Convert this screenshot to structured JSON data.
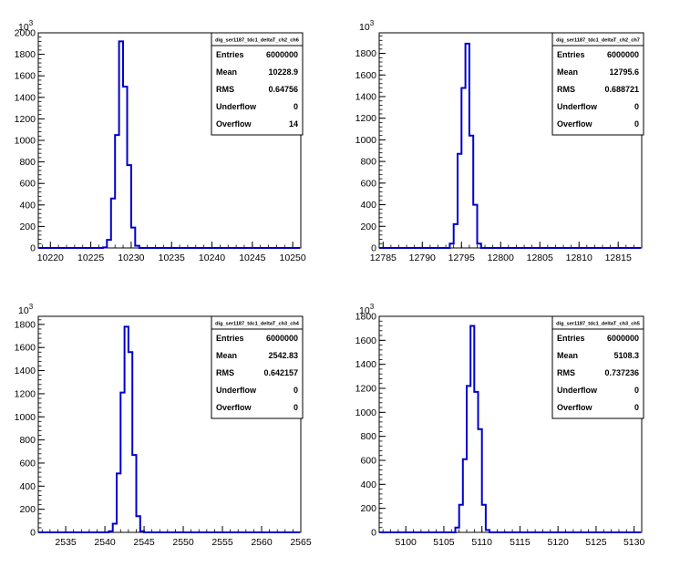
{
  "chart_data": [
    {
      "type": "histogram",
      "title": "",
      "xlabel": "",
      "ylabel": "",
      "y_multiplier": "10^3",
      "xlim": [
        10218.5,
        10251
      ],
      "ylim": [
        0,
        2000
      ],
      "x_ticks": [
        10220,
        10225,
        10230,
        10235,
        10240,
        10245,
        10250
      ],
      "y_ticks": [
        0,
        200,
        400,
        600,
        800,
        1000,
        1200,
        1400,
        1600,
        1800,
        2000
      ],
      "grid": false,
      "line_color": "#0000cc",
      "bin_width": 0.5,
      "bins": [
        [
          10226.5,
          10227,
          5
        ],
        [
          10227,
          10227.5,
          75
        ],
        [
          10227.5,
          10228,
          460
        ],
        [
          10228,
          10228.5,
          1050
        ],
        [
          10228.5,
          10229,
          1920
        ],
        [
          10229,
          10229.5,
          1500
        ],
        [
          10229.5,
          10230,
          770
        ],
        [
          10230,
          10230.5,
          190
        ],
        [
          10230.5,
          10231,
          20
        ]
      ],
      "stats": {
        "name": "dig_ser1187_tdc1_deltaT_ch2_ch6",
        "rows": [
          {
            "label": "Entries",
            "value": "6000000"
          },
          {
            "label": "Mean",
            "value": "10228.9"
          },
          {
            "label": "RMS",
            "value": "0.64756"
          },
          {
            "label": "Underflow",
            "value": "0"
          },
          {
            "label": "Overflow",
            "value": "14"
          }
        ]
      }
    },
    {
      "type": "histogram",
      "title": "",
      "xlabel": "",
      "ylabel": "",
      "y_multiplier": "10^3",
      "xlim": [
        12784.5,
        12818
      ],
      "ylim": [
        0,
        1990
      ],
      "x_ticks": [
        12785,
        12790,
        12795,
        12800,
        12805,
        12810,
        12815
      ],
      "y_ticks": [
        0,
        200,
        400,
        600,
        800,
        1000,
        1200,
        1400,
        1600,
        1800
      ],
      "grid": false,
      "line_color": "#0000cc",
      "bin_width": 0.5,
      "bins": [
        [
          12793.5,
          12794,
          40
        ],
        [
          12794,
          12794.5,
          220
        ],
        [
          12794.5,
          12795,
          870
        ],
        [
          12795,
          12795.5,
          1480
        ],
        [
          12795.5,
          12796,
          1890
        ],
        [
          12796,
          12796.5,
          1040
        ],
        [
          12796.5,
          12797,
          400
        ],
        [
          12797,
          12797.5,
          40
        ]
      ],
      "stats": {
        "name": "dig_ser1187_tdc1_deltaT_ch2_ch7",
        "rows": [
          {
            "label": "Entries",
            "value": "6000000"
          },
          {
            "label": "Mean",
            "value": "12795.6"
          },
          {
            "label": "RMS",
            "value": "0.688721"
          },
          {
            "label": "Underflow",
            "value": "0"
          },
          {
            "label": "Overflow",
            "value": "0"
          }
        ]
      }
    },
    {
      "type": "histogram",
      "title": "",
      "xlabel": "",
      "ylabel": "",
      "y_multiplier": "10^3",
      "xlim": [
        2531.5,
        2565
      ],
      "ylim": [
        0,
        1870
      ],
      "x_ticks": [
        2535,
        2540,
        2545,
        2550,
        2555,
        2560,
        2565
      ],
      "y_ticks": [
        0,
        200,
        400,
        600,
        800,
        1000,
        1200,
        1400,
        1600,
        1800
      ],
      "grid": false,
      "line_color": "#0000cc",
      "bin_width": 0.5,
      "bins": [
        [
          2540.5,
          2541,
          10
        ],
        [
          2541,
          2541.5,
          75
        ],
        [
          2541.5,
          2542,
          510
        ],
        [
          2542,
          2542.5,
          1210
        ],
        [
          2542.5,
          2543,
          1780
        ],
        [
          2543,
          2543.5,
          1560
        ],
        [
          2543.5,
          2544,
          670
        ],
        [
          2544,
          2544.5,
          140
        ],
        [
          2544.5,
          2545,
          10
        ]
      ],
      "stats": {
        "name": "dig_ser1187_tdc1_deltaT_ch3_ch4",
        "rows": [
          {
            "label": "Entries",
            "value": "6000000"
          },
          {
            "label": "Mean",
            "value": "2542.83"
          },
          {
            "label": "RMS",
            "value": "0.642157"
          },
          {
            "label": "Underflow",
            "value": "0"
          },
          {
            "label": "Overflow",
            "value": "0"
          }
        ]
      }
    },
    {
      "type": "histogram",
      "title": "",
      "xlabel": "",
      "ylabel": "",
      "y_multiplier": "10^3",
      "xlim": [
        5096.5,
        5131
      ],
      "ylim": [
        0,
        1800
      ],
      "x_ticks": [
        5100,
        5105,
        5110,
        5115,
        5120,
        5125,
        5130
      ],
      "y_ticks": [
        0,
        200,
        400,
        600,
        800,
        1000,
        1200,
        1400,
        1600,
        1800
      ],
      "grid": false,
      "line_color": "#0000cc",
      "bin_width": 0.5,
      "bins": [
        [
          5106.5,
          5107,
          40
        ],
        [
          5107,
          5107.5,
          230
        ],
        [
          5107.5,
          5108,
          610
        ],
        [
          5108,
          5108.5,
          1220
        ],
        [
          5108.5,
          5109,
          1720
        ],
        [
          5109,
          5109.5,
          1170
        ],
        [
          5109.5,
          5110,
          860
        ],
        [
          5110,
          5110.5,
          230
        ],
        [
          5110.5,
          5111,
          20
        ]
      ],
      "stats": {
        "name": "dig_ser1187_tdc1_deltaT_ch3_ch5",
        "rows": [
          {
            "label": "Entries",
            "value": "6000000"
          },
          {
            "label": "Mean",
            "value": "5108.3"
          },
          {
            "label": "RMS",
            "value": "0.737236"
          },
          {
            "label": "Underflow",
            "value": "0"
          },
          {
            "label": "Overflow",
            "value": "0"
          }
        ]
      }
    }
  ]
}
